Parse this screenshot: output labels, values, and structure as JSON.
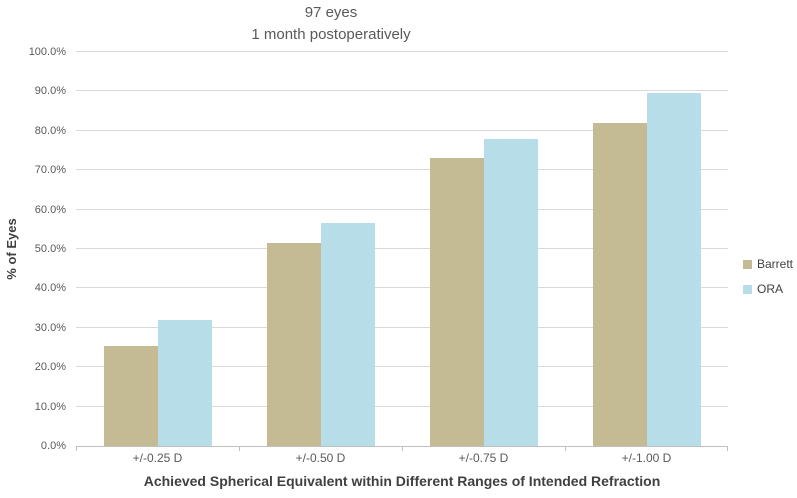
{
  "chart_data": {
    "type": "bar",
    "title_lines": [
      "97 eyes",
      "1 month postoperatively"
    ],
    "categories": [
      "+/-0.25 D",
      "+/-0.50 D",
      "+/-0.75 D",
      "+/-1.00 D"
    ],
    "series": [
      {
        "name": "Barrett",
        "color": "#C4BB94",
        "values": [
          25.5,
          51.5,
          73.0,
          82.0
        ]
      },
      {
        "name": "ORA",
        "color": "#B7DDE8",
        "values": [
          32.0,
          56.5,
          78.0,
          89.5
        ]
      }
    ],
    "xlabel": "Achieved Spherical Equivalent within Different Ranges of Intended Refraction",
    "ylabel": "% of Eyes",
    "ylim": [
      0,
      100
    ],
    "ytick_step": 10,
    "ytick_labels": [
      "0.0%",
      "10.0%",
      "20.0%",
      "30.0%",
      "40.0%",
      "50.0%",
      "60.0%",
      "70.0%",
      "80.0%",
      "90.0%",
      "100.0%"
    ],
    "grid": true,
    "legend_position": "right",
    "colors": {
      "title_text": "#595959",
      "axis_text": "#404040",
      "tick_text": "#595959",
      "gridline": "#D9D9D9",
      "axis_line": "#BFBFBF",
      "background": "#FFFFFF"
    }
  }
}
